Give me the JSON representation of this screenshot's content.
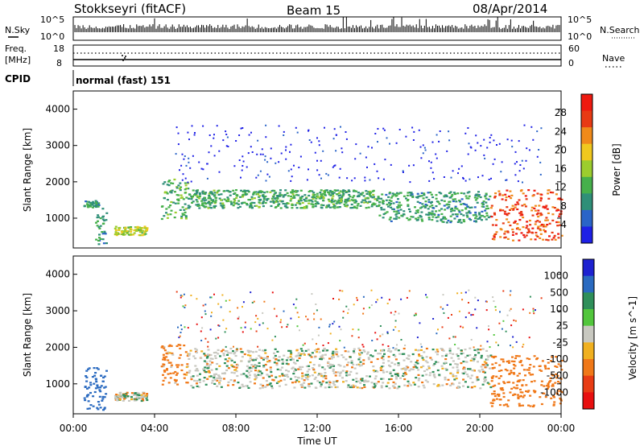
{
  "header": {
    "radar": "Stokkseyri (fitACF)",
    "beam": "Beam 15",
    "date": "08/Apr/2014"
  },
  "strip_labels": {
    "nsky": "N.Sky",
    "nsky_hi": "10^5",
    "nsky_lo": "10^0",
    "nsearch": "N.Search",
    "nsearch_hi": "10^5",
    "nsearch_lo": "10^0",
    "freq_label": "Freq.",
    "freq_unit": "[MHz]",
    "freq_hi": "18",
    "freq_lo": "8",
    "nave": "Nave",
    "nave_hi": "60",
    "nave_lo": "0",
    "cpid": "CPID",
    "cpid_text": "normal (fast) 151"
  },
  "chart_data": [
    {
      "type": "heatmap",
      "name": "power",
      "ylabel": "Slant Range [km]",
      "xlabel": "",
      "xlim": [
        "00:00",
        "00:00"
      ],
      "ylim": [
        180,
        4500
      ],
      "y_ticks": [
        "1000",
        "2000",
        "3000",
        "4000"
      ],
      "colorbar": {
        "label": "Power [dB]",
        "ticks": [
          "4",
          "8",
          "12",
          "16",
          "20",
          "24",
          "28"
        ],
        "colors": [
          "#1e20e6",
          "#2a64c8",
          "#2f8f78",
          "#46b04b",
          "#9ccd2e",
          "#f0c81e",
          "#f08a1a",
          "#e83a14",
          "#ee1a10"
        ]
      },
      "regions": [
        {
          "t": [
            0.5,
            1.2
          ],
          "range": [
            1300,
            1500
          ],
          "level": 10
        },
        {
          "t": [
            1.0,
            1.6
          ],
          "range": [
            300,
            1400
          ],
          "level": 9
        },
        {
          "t": [
            2.0,
            3.6
          ],
          "range": [
            550,
            800
          ],
          "level": 17
        },
        {
          "t": [
            4.3,
            5.6
          ],
          "range": [
            1000,
            2100
          ],
          "level": 12
        },
        {
          "t": [
            5.6,
            15.0
          ],
          "range": [
            1300,
            1800
          ],
          "level": 11
        },
        {
          "t": [
            15.0,
            20.5
          ],
          "range": [
            900,
            1750
          ],
          "level": 10
        },
        {
          "t": [
            20.5,
            24.0
          ],
          "range": [
            400,
            1800
          ],
          "level": 26
        }
      ]
    },
    {
      "type": "heatmap",
      "name": "velocity",
      "ylabel": "Slant Range [km]",
      "xlabel": "Time UT",
      "xlim": [
        "00:00",
        "00:00"
      ],
      "ylim": [
        180,
        4500
      ],
      "x_ticks": [
        "00:00",
        "04:00",
        "08:00",
        "12:00",
        "16:00",
        "20:00",
        "00:00"
      ],
      "y_ticks": [
        "1000",
        "2000",
        "3000",
        "4000"
      ],
      "colorbar": {
        "label": "Velocity [m s^-1]",
        "ticks": [
          "1000",
          "500",
          "100",
          "25",
          "-25",
          "-100",
          "-500",
          "-1000"
        ],
        "colors": [
          "#1e22d0",
          "#2a6ac0",
          "#2f8f5a",
          "#52c63c",
          "#c8c8c0",
          "#f0b020",
          "#f07818",
          "#e83c14",
          "#e81010"
        ]
      },
      "regions": [
        {
          "t": [
            0.5,
            1.6
          ],
          "range": [
            300,
            1500
          ],
          "velocity": 300
        },
        {
          "t": [
            2.0,
            3.6
          ],
          "range": [
            550,
            800
          ],
          "velocity": 0
        },
        {
          "t": [
            4.3,
            5.6
          ],
          "range": [
            1000,
            2100
          ],
          "velocity": -200
        },
        {
          "t": [
            5.6,
            20.5
          ],
          "range": [
            900,
            2000
          ],
          "velocity": 0
        },
        {
          "t": [
            20.5,
            24.0
          ],
          "range": [
            400,
            1800
          ],
          "velocity": -300
        }
      ]
    }
  ]
}
